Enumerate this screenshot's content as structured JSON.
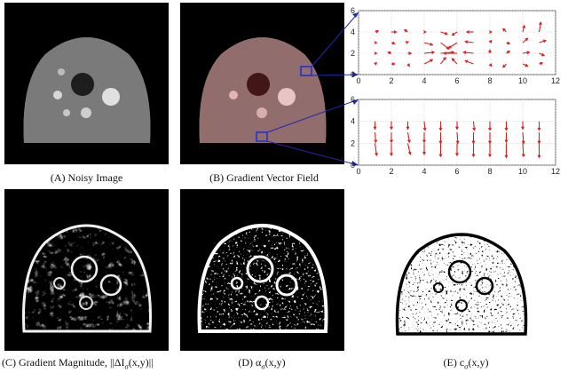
{
  "captions": {
    "a": "(A) Noisy Image",
    "b": "(B)  Gradient Vector Field",
    "c_prefix": "(C)  Gradient Magnitude, ||ΔI",
    "c_sub": "σ",
    "c_suffix": "(x,y)||",
    "d_prefix": "(D)  α",
    "d_sub": "σ",
    "d_suffix": "(x,y)",
    "e_prefix": "(E) c",
    "e_sub": "σ",
    "e_suffix": "(x,y)"
  },
  "colors": {
    "arrow": "#d62020",
    "zoom_box": "#2233cc",
    "connector": "#1a2ab0",
    "grid": "#cfcfcf"
  },
  "chart_data": [
    {
      "type": "quiver",
      "xlim": [
        0,
        12
      ],
      "ylim": [
        0,
        6
      ],
      "xticks": [
        "0",
        "2",
        "4",
        "6",
        "8",
        "10",
        "12"
      ],
      "yticks": [
        "0",
        "2",
        "4",
        "6"
      ],
      "grid": true,
      "vectors": [
        [
          1,
          4,
          0.2,
          0.1
        ],
        [
          2,
          4,
          0.3,
          0.0
        ],
        [
          3,
          4,
          -0.2,
          0.2
        ],
        [
          4,
          4,
          0.1,
          0.0
        ],
        [
          5,
          4,
          0.4,
          -0.2
        ],
        [
          6,
          4,
          -0.3,
          -0.3
        ],
        [
          7,
          4,
          -0.4,
          0.0
        ],
        [
          8,
          4,
          0.1,
          0.0
        ],
        [
          9,
          4,
          -0.2,
          0.3
        ],
        [
          10,
          4,
          0.1,
          0.6
        ],
        [
          11,
          4,
          0.1,
          0.9
        ],
        [
          1,
          3,
          0.1,
          0.0
        ],
        [
          2,
          3,
          0.2,
          -0.1
        ],
        [
          3,
          3,
          -0.1,
          0.1
        ],
        [
          4,
          3,
          0.5,
          -0.2
        ],
        [
          5,
          3,
          0.5,
          -0.6
        ],
        [
          6,
          3,
          -0.5,
          -0.5
        ],
        [
          7,
          3,
          -0.5,
          0.1
        ],
        [
          8,
          3,
          0.1,
          0.2
        ],
        [
          9,
          3,
          0.2,
          -0.1
        ],
        [
          10,
          3,
          0.3,
          0.4
        ],
        [
          11,
          3,
          0.4,
          0.2
        ],
        [
          1,
          2,
          0.1,
          0.0
        ],
        [
          2,
          2,
          -0.2,
          0.1
        ],
        [
          3,
          2,
          0.2,
          0.0
        ],
        [
          4,
          2,
          0.6,
          0.1
        ],
        [
          5,
          2,
          0.8,
          0.1
        ],
        [
          6,
          2,
          -0.8,
          0.0
        ],
        [
          7,
          2,
          -0.6,
          0.1
        ],
        [
          8,
          2,
          0.0,
          0.3
        ],
        [
          9,
          2,
          0.2,
          0.2
        ],
        [
          10,
          2,
          0.4,
          0.1
        ],
        [
          11,
          2,
          0.3,
          -0.2
        ],
        [
          1,
          1,
          0.1,
          0.1
        ],
        [
          2,
          1,
          0.2,
          0.0
        ],
        [
          3,
          1,
          0.1,
          -0.2
        ],
        [
          4,
          1,
          0.5,
          0.4
        ],
        [
          5,
          1,
          0.3,
          0.6
        ],
        [
          6,
          1,
          -0.3,
          0.5
        ],
        [
          7,
          1,
          -0.5,
          0.3
        ],
        [
          8,
          1,
          0.1,
          -0.2
        ],
        [
          9,
          1,
          -0.2,
          -0.3
        ],
        [
          10,
          1,
          0.3,
          -0.2
        ],
        [
          11,
          1,
          0.2,
          0.1
        ]
      ]
    },
    {
      "type": "quiver",
      "xlim": [
        0,
        12
      ],
      "ylim": [
        0,
        6
      ],
      "xticks": [
        "0",
        "2",
        "4",
        "6",
        "8",
        "10",
        "12"
      ],
      "yticks": [
        "0",
        "2",
        "4",
        "6"
      ],
      "grid": true,
      "vectors": [
        [
          1,
          4,
          0.0,
          -0.7
        ],
        [
          2,
          4,
          0.0,
          -0.7
        ],
        [
          3,
          4,
          0.0,
          -0.7
        ],
        [
          4,
          4,
          0.05,
          -0.8
        ],
        [
          5,
          4,
          0.0,
          -0.8
        ],
        [
          6,
          4,
          0.0,
          -0.7
        ],
        [
          7,
          4,
          0.05,
          -0.8
        ],
        [
          8,
          4,
          0.0,
          -0.8
        ],
        [
          9,
          4,
          0.0,
          -0.8
        ],
        [
          10,
          4,
          0.0,
          -0.7
        ],
        [
          11,
          4,
          0.0,
          -0.8
        ],
        [
          1,
          3,
          0.05,
          -0.9
        ],
        [
          2,
          3,
          0.0,
          -0.9
        ],
        [
          3,
          3,
          0.1,
          -0.9
        ],
        [
          4,
          3,
          0.0,
          -0.9
        ],
        [
          5,
          3,
          0.0,
          -1.0
        ],
        [
          6,
          3,
          0.05,
          -1.0
        ],
        [
          7,
          3,
          0.0,
          -1.0
        ],
        [
          8,
          3,
          0.0,
          -1.0
        ],
        [
          9,
          3,
          0.0,
          -0.9
        ],
        [
          10,
          3,
          0.05,
          -1.0
        ],
        [
          11,
          3,
          0.0,
          -1.0
        ],
        [
          1,
          2,
          0.1,
          -1.1
        ],
        [
          2,
          2,
          0.0,
          -1.1
        ],
        [
          3,
          2,
          0.15,
          -1.0
        ],
        [
          4,
          2,
          0.0,
          -1.0
        ],
        [
          5,
          2,
          0.0,
          -1.2
        ],
        [
          6,
          2,
          0.0,
          -1.1
        ],
        [
          7,
          2,
          0.0,
          -1.2
        ],
        [
          8,
          2,
          0.0,
          -1.2
        ],
        [
          9,
          2,
          0.0,
          -1.3
        ],
        [
          10,
          2,
          0.05,
          -1.2
        ],
        [
          11,
          2,
          0.0,
          -1.3
        ]
      ]
    }
  ]
}
